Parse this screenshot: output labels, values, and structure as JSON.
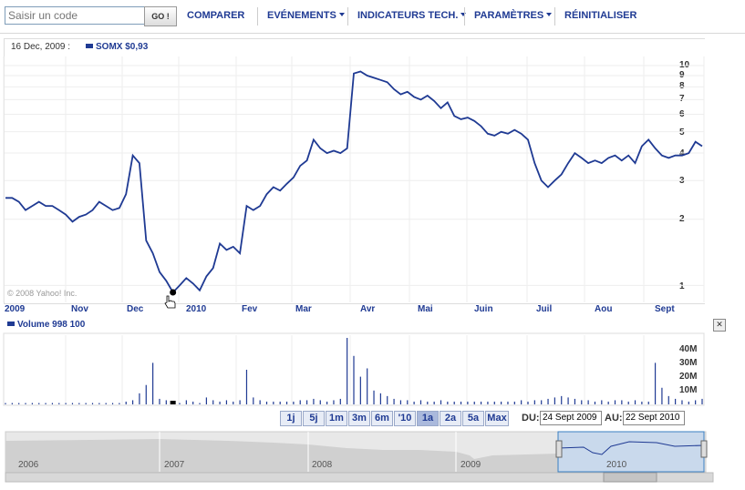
{
  "toolbar": {
    "search_placeholder": "Saisir un code",
    "go_label": "GO !",
    "menu": [
      "COMPARER",
      "EVÉNEMENTS",
      "INDICATEURS TECH.",
      "PARAMÈTRES",
      "RÉINITIALISER"
    ]
  },
  "header": {
    "date": "16 Dec, 2009 :",
    "legend": "SOMX  $0,93"
  },
  "copyright": "© 2008 Yahoo! Inc.",
  "volume_header": "Volume  998 100",
  "close_label": "✕",
  "range_buttons": [
    "1j",
    "5j",
    "1m",
    "3m",
    "6m",
    "'10",
    "1a",
    "2a",
    "5a",
    "Max"
  ],
  "active_range": "1a",
  "date_range": {
    "from_label": "DU:",
    "from_value": "24 Sept 2009",
    "to_label": "AU:",
    "to_value": "22 Sept 2010"
  },
  "navigator_years": [
    "2006",
    "2007",
    "2008",
    "2009",
    "2010"
  ],
  "colors": {
    "line": "#1f3a93",
    "accent": "#1f3a93"
  },
  "chart_data": [
    {
      "type": "line",
      "series": [
        {
          "name": "SOMX",
          "values": [
            2.5,
            2.5,
            2.4,
            2.2,
            2.3,
            2.4,
            2.3,
            2.3,
            2.2,
            2.1,
            1.95,
            2.05,
            2.1,
            2.2,
            2.4,
            2.3,
            2.2,
            2.25,
            2.6,
            3.9,
            3.6,
            1.6,
            1.4,
            1.15,
            1.05,
            0.93,
            1.0,
            1.08,
            1.02,
            0.95,
            1.1,
            1.2,
            1.55,
            1.45,
            1.5,
            1.4,
            2.3,
            2.2,
            2.3,
            2.6,
            2.8,
            2.7,
            2.9,
            3.1,
            3.5,
            3.7,
            4.6,
            4.2,
            4.0,
            4.1,
            4.0,
            4.2,
            9.2,
            9.4,
            9.0,
            8.8,
            8.6,
            8.4,
            7.8,
            7.4,
            7.6,
            7.2,
            7.0,
            7.3,
            6.9,
            6.4,
            6.8,
            5.9,
            5.7,
            5.8,
            5.6,
            5.3,
            4.9,
            4.8,
            5.0,
            4.9,
            5.1,
            4.9,
            4.6,
            3.6,
            3.0,
            2.8,
            3.0,
            3.2,
            3.6,
            4.0,
            3.8,
            3.6,
            3.7,
            3.6,
            3.8,
            3.9,
            3.7,
            3.9,
            3.6,
            4.3,
            4.6,
            4.2,
            3.9,
            3.8,
            3.9,
            3.9,
            4.0,
            4.5,
            4.3
          ]
        }
      ],
      "x_tick_labels": [
        "2009",
        "Nov",
        "Dec",
        "2010",
        "Fev",
        "Mar",
        "Avr",
        "Mai",
        "Juin",
        "Juil",
        "Aou",
        "Sept"
      ],
      "y_tick_labels": [
        "10",
        "9",
        "8",
        "7",
        "6",
        "5",
        "4",
        "3",
        "2",
        "1"
      ],
      "y_scale": "log",
      "ylim": [
        0.93,
        10
      ],
      "highlight": {
        "label": "16 Dec, 2009",
        "value": 0.93
      }
    },
    {
      "type": "bar",
      "series": [
        {
          "name": "Volume",
          "values": [
            1,
            1,
            1,
            1,
            1,
            1,
            1,
            1,
            1,
            1,
            1,
            1,
            1,
            1,
            1,
            1,
            1,
            1,
            2,
            3,
            8,
            14,
            30,
            4,
            3,
            2,
            1,
            3,
            2,
            1,
            5,
            3,
            2,
            3,
            2,
            3,
            25,
            5,
            3,
            2,
            2,
            2,
            2,
            2,
            3,
            3,
            4,
            3,
            2,
            3,
            4,
            48,
            35,
            20,
            26,
            10,
            8,
            6,
            4,
            3,
            3,
            2,
            3,
            2,
            2,
            3,
            2,
            2,
            2,
            2,
            2,
            2,
            2,
            2,
            2,
            2,
            2,
            3,
            2,
            3,
            3,
            4,
            5,
            6,
            5,
            4,
            3,
            3,
            2,
            3,
            2,
            3,
            3,
            2,
            3,
            2,
            2,
            30,
            12,
            6,
            4,
            3,
            2,
            3,
            4
          ]
        }
      ],
      "y_tick_labels": [
        "40M",
        "30M",
        "20M",
        "10M"
      ],
      "ylim": [
        0,
        48
      ]
    }
  ]
}
